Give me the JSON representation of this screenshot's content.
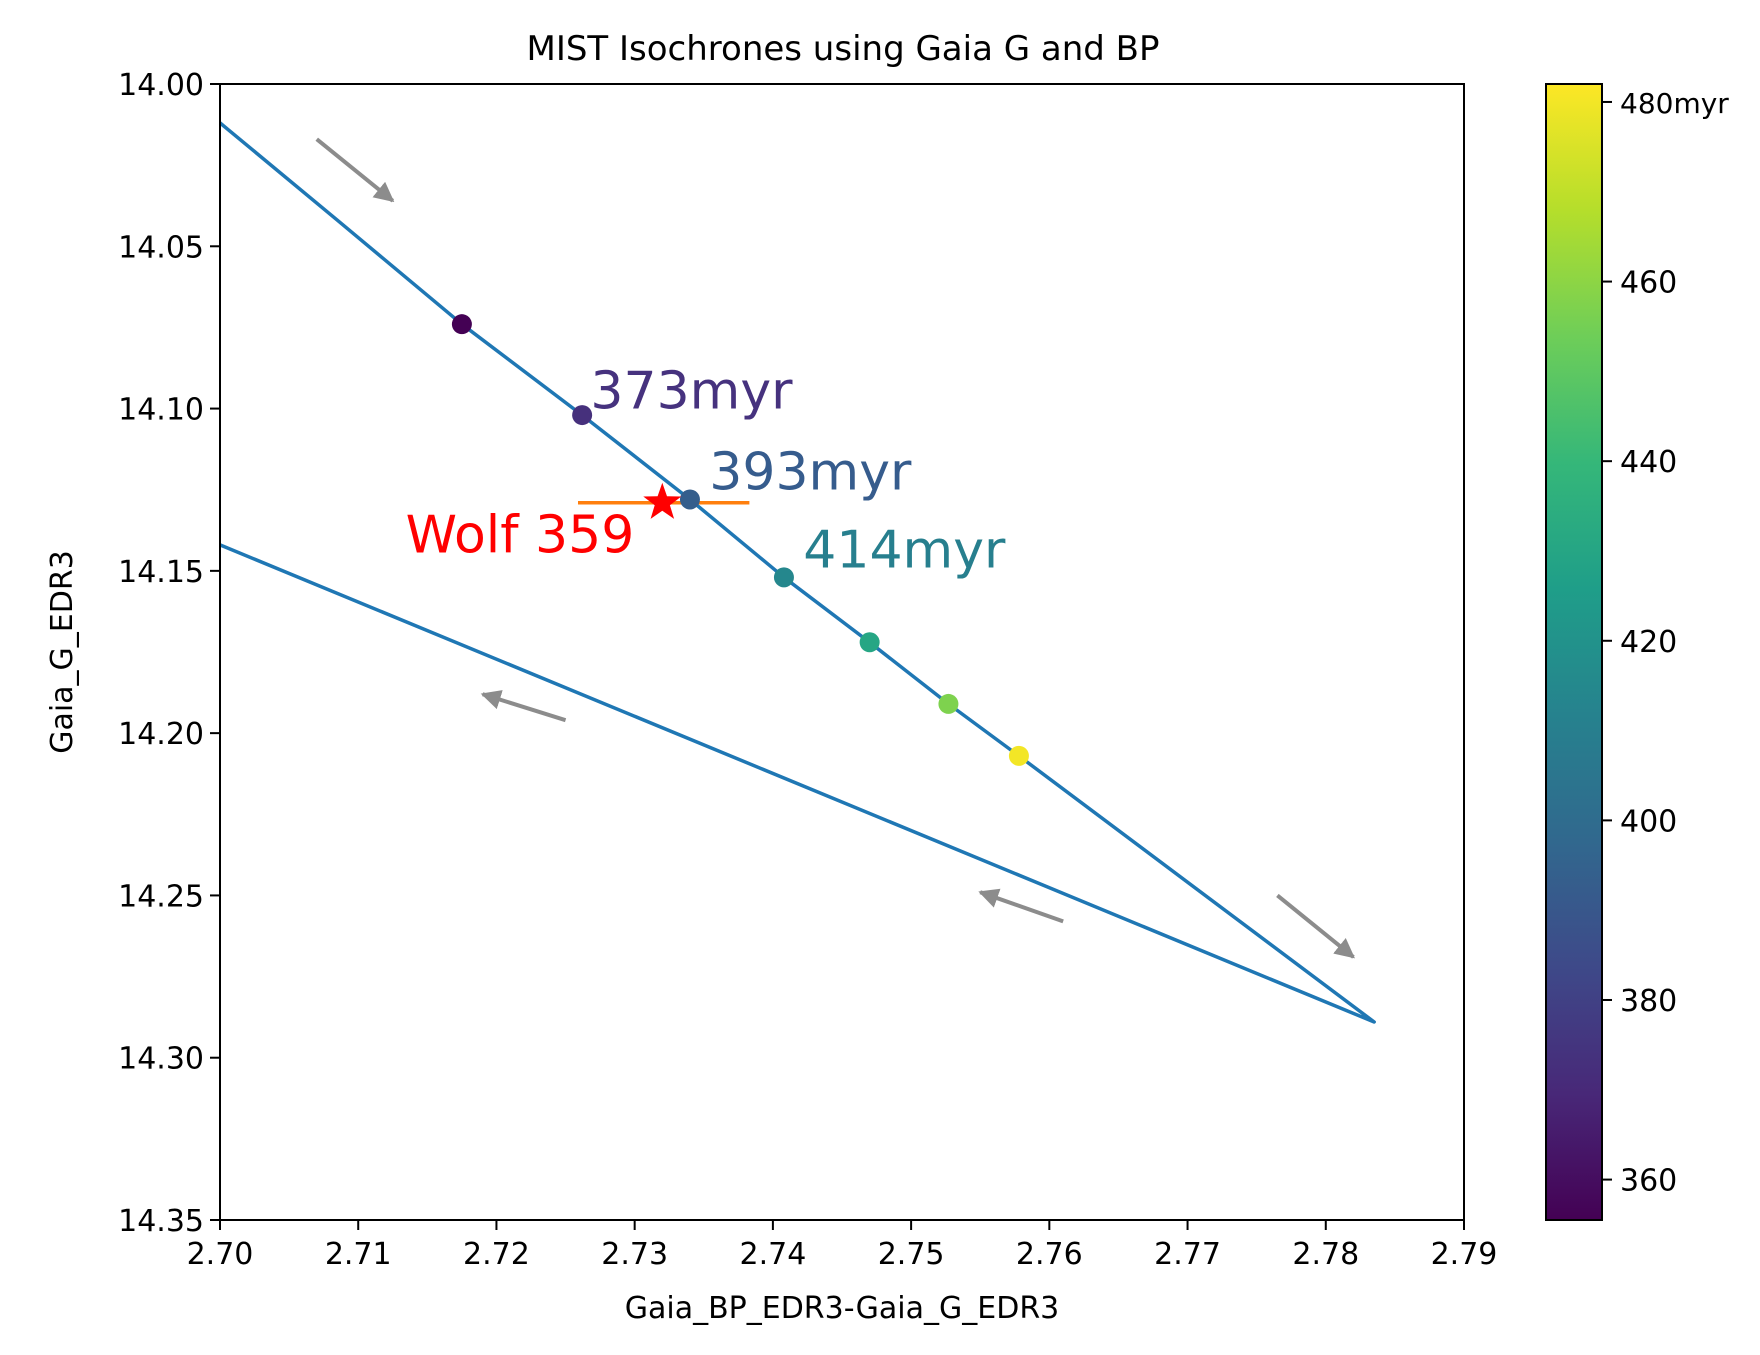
{
  "chart_data": {
    "type": "line",
    "title": "MIST Isochrones using Gaia G and BP",
    "xlabel": "Gaia_BP_EDR3-Gaia_G_EDR3",
    "ylabel": "Gaia_G_EDR3",
    "xlim": [
      2.7,
      2.79
    ],
    "ylim": [
      14.35,
      14.0
    ],
    "y_inverted": true,
    "x_ticks": [
      2.7,
      2.71,
      2.72,
      2.73,
      2.74,
      2.75,
      2.76,
      2.77,
      2.78,
      2.79
    ],
    "x_tick_labels": [
      "2.70",
      "2.71",
      "2.72",
      "2.73",
      "2.74",
      "2.75",
      "2.76",
      "2.77",
      "2.78",
      "2.79"
    ],
    "y_ticks": [
      14.0,
      14.05,
      14.1,
      14.15,
      14.2,
      14.25,
      14.3,
      14.35
    ],
    "y_tick_labels": [
      "14.00",
      "14.05",
      "14.10",
      "14.15",
      "14.20",
      "14.25",
      "14.30",
      "14.35"
    ],
    "grid": false,
    "isochrone_track": {
      "color": "#1f77b4",
      "x": [
        2.7,
        2.7085,
        2.7175,
        2.7262,
        2.734,
        2.7408,
        2.747,
        2.7527,
        2.7578,
        2.7835,
        2.7
      ],
      "y": [
        14.012,
        14.042,
        14.074,
        14.102,
        14.128,
        14.152,
        14.172,
        14.191,
        14.207,
        14.289,
        14.142
      ]
    },
    "age_points": [
      {
        "x": 2.7175,
        "y": 14.074,
        "age_myr": 355
      },
      {
        "x": 2.7262,
        "y": 14.102,
        "age_myr": 373
      },
      {
        "x": 2.734,
        "y": 14.128,
        "age_myr": 393
      },
      {
        "x": 2.7408,
        "y": 14.152,
        "age_myr": 414
      },
      {
        "x": 2.747,
        "y": 14.172,
        "age_myr": 430
      },
      {
        "x": 2.7527,
        "y": 14.191,
        "age_myr": 457
      },
      {
        "x": 2.7578,
        "y": 14.207,
        "age_myr": 480
      }
    ],
    "age_labels": [
      {
        "text": "373myr",
        "x": 2.7268,
        "y": 14.1,
        "color": "#46327e"
      },
      {
        "text": "393myr",
        "x": 2.7354,
        "y": 14.125,
        "color": "#365c8d"
      },
      {
        "text": "414myr",
        "x": 2.7422,
        "y": 14.149,
        "color": "#277f8e"
      }
    ],
    "star": {
      "label": "Wolf 359",
      "x": 2.732,
      "y": 14.129,
      "x_err_low": 2.7259,
      "x_err_high": 2.7383,
      "color": "#ff0000",
      "errorbar_color": "#ff7f0e"
    },
    "direction_arrows": [
      {
        "x1": 2.707,
        "y1": 14.017,
        "x2": 2.7125,
        "y2": 14.036
      },
      {
        "x1": 2.725,
        "y1": 14.196,
        "x2": 2.719,
        "y2": 14.188
      },
      {
        "x1": 2.761,
        "y1": 14.258,
        "x2": 2.755,
        "y2": 14.249
      },
      {
        "x1": 2.7765,
        "y1": 14.25,
        "x2": 2.782,
        "y2": 14.269
      }
    ],
    "colorbar": {
      "colormap": "viridis",
      "min": 355.5,
      "max": 482,
      "ticks": [
        360,
        380,
        400,
        420,
        440,
        460
      ],
      "tick_labels": [
        "360",
        "380",
        "400",
        "420",
        "440",
        "460"
      ],
      "top_label": "480myr",
      "top_value": 480,
      "stops": [
        "#440154",
        "#482878",
        "#3e4989",
        "#31688e",
        "#26828e",
        "#1f9e89",
        "#35b779",
        "#6ece58",
        "#b5de2b",
        "#fde725"
      ]
    }
  }
}
